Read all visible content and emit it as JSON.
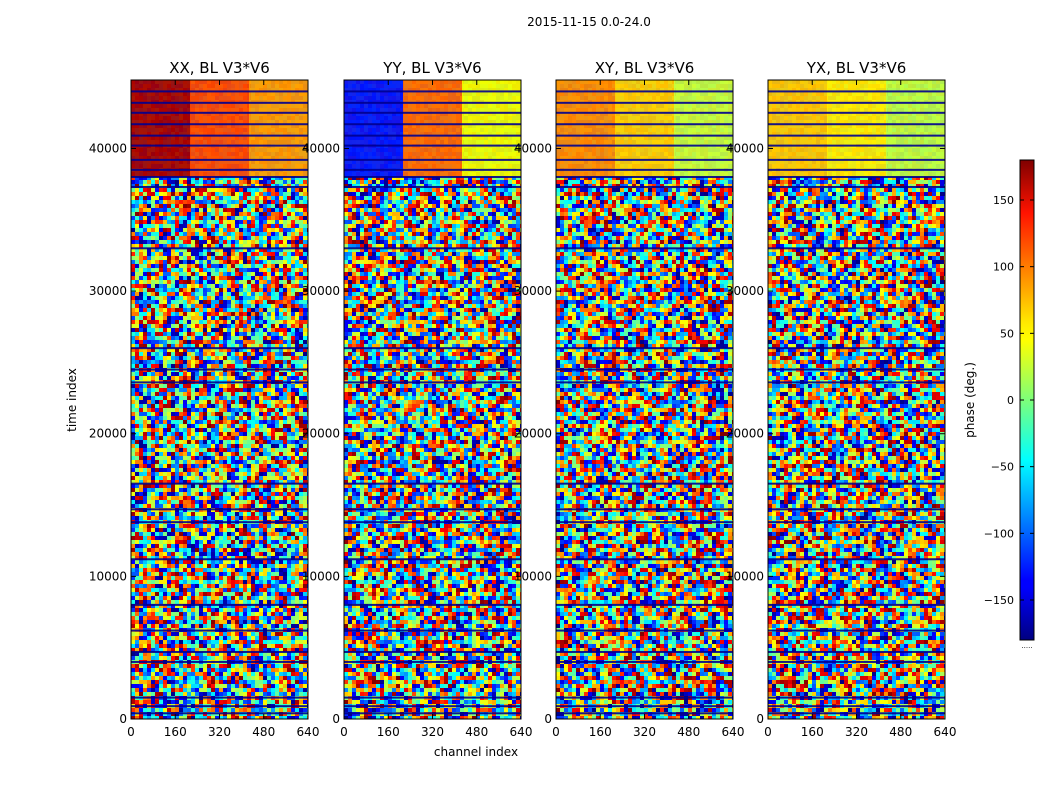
{
  "figure": {
    "suptitle": "2015-11-15 0.0-24.0",
    "xlabel": "channel index",
    "ylabel": "time index",
    "colorbar_label": "phase (deg.)",
    "colorbar_footer": "....."
  },
  "chart_data": {
    "type": "heatmap",
    "colormap": "jet",
    "x_range": [
      0,
      640
    ],
    "y_range": [
      0,
      44800
    ],
    "x_ticks": [
      0,
      160,
      320,
      480,
      640
    ],
    "y_ticks": [
      0,
      10000,
      20000,
      30000,
      40000
    ],
    "x_tick_labels": [
      "0",
      "160",
      "320",
      "480",
      "640"
    ],
    "y_tick_labels": [
      "0",
      "10000",
      "20000",
      "30000",
      "40000"
    ],
    "color_range": [
      -180,
      180
    ],
    "colorbar_ticks": [
      -150,
      -100,
      -50,
      0,
      50,
      100,
      150
    ],
    "colorbar_tick_labels": [
      "−150",
      "−100",
      "−50",
      "0",
      "50",
      "100",
      "150"
    ],
    "panels": [
      {
        "title": "XX, BL V3*V6",
        "band_colors": [
          "#a50000",
          "#ff4a00",
          "#ff9a00"
        ]
      },
      {
        "title": "YY, BL V3*V6",
        "band_colors": [
          "#0014ff",
          "#ff6a00",
          "#f0ff00"
        ]
      },
      {
        "title": "XY, BL V3*V6",
        "band_colors": [
          "#ff8c00",
          "#ffd000",
          "#c8ff3a"
        ]
      },
      {
        "title": "YX, BL V3*V6",
        "band_colors": [
          "#ffc800",
          "#fff000",
          "#bfff40"
        ]
      }
    ]
  }
}
